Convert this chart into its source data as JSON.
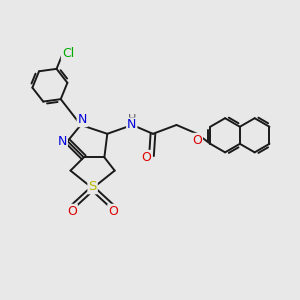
{
  "bg_color": "#e8e8e8",
  "bond_color": "#1a1a1a",
  "bond_width": 1.4,
  "atom_colors": {
    "N": "#0000dd",
    "O": "#dd0000",
    "S": "#bbbb00",
    "Cl": "#00aa00",
    "C": "#1a1a1a",
    "H": "#555555"
  },
  "font_size": 8.5
}
